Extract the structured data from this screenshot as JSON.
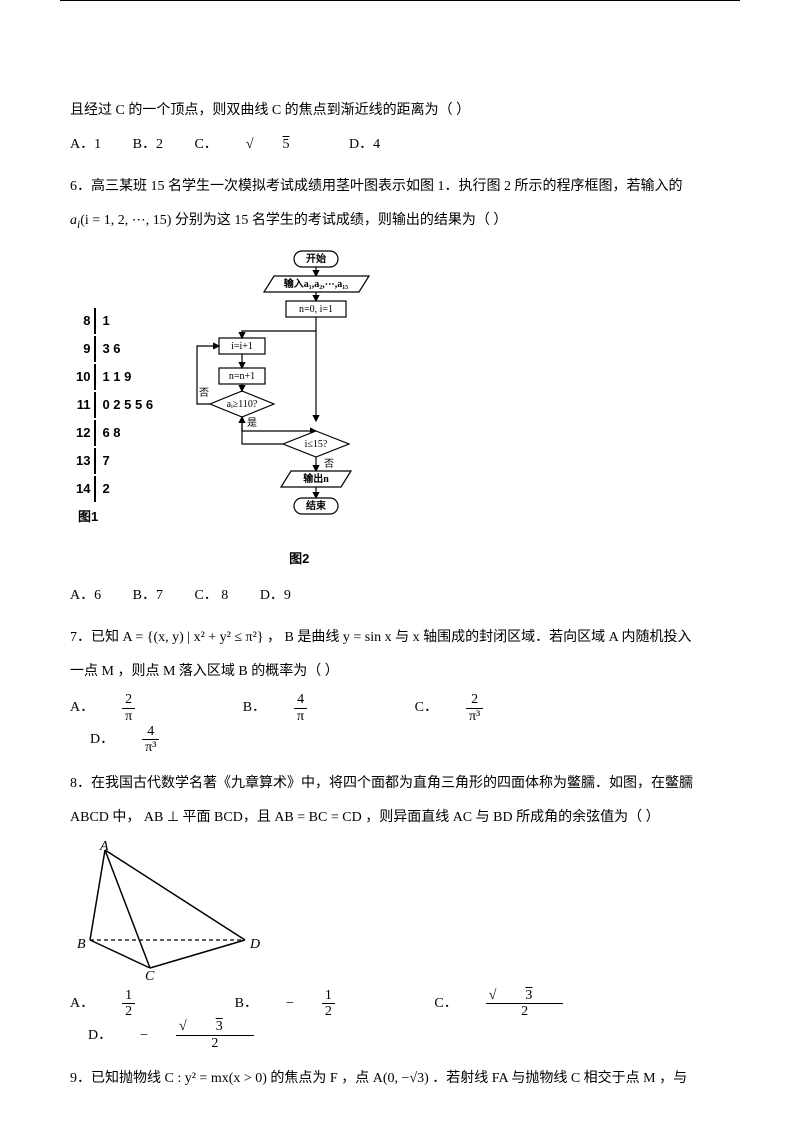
{
  "q5": {
    "tail": "且经过 C 的一个顶点，则双曲线 C 的焦点到渐近线的距离为（   ）",
    "optA": "A．1",
    "optB": "B．2",
    "optC_pre": "C．",
    "optC_sqrt": "5",
    "optD": "D．4"
  },
  "q6": {
    "line1": "6．高三某班 15 名学生一次模拟考试成绩用茎叶图表示如图 1．执行图 2 所示的程序框图，若输入的",
    "line2_pre": "a",
    "line2_sub": "i",
    "line2_paren": "(i = 1, 2, ⋯, 15)",
    "line2_post": " 分别为这 15 名学生的考试成绩，则输出的结果为（   ）",
    "stem_leaf": {
      "rows": [
        {
          "stem": "8",
          "leaf": "1"
        },
        {
          "stem": "9",
          "leaf": "3 6"
        },
        {
          "stem": "10",
          "leaf": "1 1 9"
        },
        {
          "stem": "11",
          "leaf": "0 2 5 5 6"
        },
        {
          "stem": "12",
          "leaf": "6 8"
        },
        {
          "stem": "13",
          "leaf": "7"
        },
        {
          "stem": "14",
          "leaf": "2"
        }
      ],
      "label": "图1"
    },
    "flow": {
      "start": "开始",
      "input": "输入a₁,a₂,⋯,a₁₅",
      "init": "n=0, i=1",
      "inc_i": "i=i+1",
      "inc_n": "n=n+1",
      "cond1": "aᵢ≥110?",
      "cond2": "i≤15?",
      "yes": "是",
      "no": "否",
      "output": "输出n",
      "end": "结束",
      "label": "图2"
    },
    "optA": "A．6",
    "optB": "B．7",
    "optC": "C． 8",
    "optD": "D．9"
  },
  "q7": {
    "text_pre": "7．已知 A = {(x, y) | x² + y² ≤ π²} ， B 是曲线 y = sin x 与 x 轴围成的封闭区域．若向区域 A 内随机投入",
    "text_line2": "一点 M ，则点 M 落入区域 B 的概率为（   ）",
    "optA_pre": "A．",
    "optA_num": "2",
    "optA_den": "π",
    "optB_pre": "B．",
    "optB_num": "4",
    "optB_den": "π",
    "optC_pre": "C．",
    "optC_num": "2",
    "optC_den": "π³",
    "optD_pre": "D．",
    "optD_num": "4",
    "optD_den": "π³"
  },
  "q8": {
    "line1": "8．在我国古代数学名著《九章算术》中，将四个面都为直角三角形的四面体称为鳖臑．如图，在鳖臑",
    "line2": " ABCD 中， AB ⊥ 平面 BCD，且 AB = BC = CD ，则异面直线 AC 与 BD 所成角的余弦值为（   ）",
    "labels": {
      "A": "A",
      "B": "B",
      "C": "C",
      "D": "D"
    },
    "optA_pre": "A．",
    "optA_num": "1",
    "optA_den": "2",
    "optB_pre": "B．",
    "optB_neg": "−",
    "optB_num": "1",
    "optB_den": "2",
    "optC_pre": "C．",
    "optC_num_sqrt": "3",
    "optC_den": "2",
    "optD_pre": "D．",
    "optD_neg": "−",
    "optD_num_sqrt": "3",
    "optD_den": "2"
  },
  "q9": {
    "text": "9．已知抛物线 C : y² = mx(x > 0) 的焦点为 F ，点 A(0, −√3) ．若射线 FA 与抛物线 C 相交于点 M ，与"
  }
}
